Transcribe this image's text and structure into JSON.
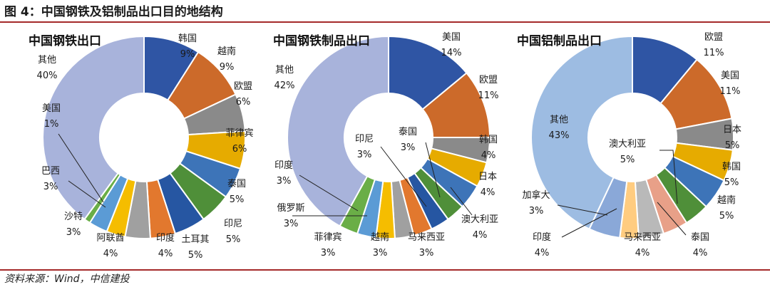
{
  "figure_title": "图 4：中国钢铁及铝制品出口目的地结构",
  "source": "资料来源：Wind，中信建投",
  "chart_data": [
    {
      "type": "pie",
      "title": "中国钢铁出口",
      "categories": [
        "韩国",
        "越南",
        "欧盟",
        "菲律宾",
        "泰国",
        "印尼",
        "土耳其",
        "印度",
        "阿联酋",
        "沙特",
        "巴西",
        "美国",
        "其他"
      ],
      "values": [
        9,
        9,
        6,
        6,
        5,
        5,
        5,
        4,
        4,
        3,
        3,
        1,
        40
      ],
      "value_labels": [
        "9%",
        "9%",
        "6%",
        "6%",
        "5%",
        "5%",
        "5%",
        "4%",
        "4%",
        "3%",
        "3%",
        "1%",
        "40%"
      ],
      "colors": [
        "#2f55a4",
        "#cc6a2a",
        "#8a8a8a",
        "#e6ab00",
        "#3d74b8",
        "#4f8f39",
        "#2656a2",
        "#e2782e",
        "#a0a0a0",
        "#f5bd00",
        "#5b9bd5",
        "#6aae47",
        "#a8b3db"
      ]
    },
    {
      "type": "pie",
      "title": "中国钢铁制品出口",
      "categories": [
        "美国",
        "欧盟",
        "韩国",
        "日本",
        "澳大利亚",
        "泰国",
        "印尼",
        "马来西亚",
        "越南",
        "菲律宾",
        "俄罗斯",
        "印度",
        "其他"
      ],
      "values": [
        14,
        11,
        4,
        4,
        4,
        3,
        3,
        3,
        3,
        3,
        3,
        3,
        42
      ],
      "value_labels": [
        "14%",
        "11%",
        "4%",
        "4%",
        "4%",
        "3%",
        "3%",
        "3%",
        "3%",
        "3%",
        "3%",
        "3%",
        "42%"
      ],
      "colors": [
        "#2f55a4",
        "#cc6a2a",
        "#8a8a8a",
        "#e6ab00",
        "#3d74b8",
        "#4f8f39",
        "#2656a2",
        "#e2782e",
        "#a0a0a0",
        "#f5bd00",
        "#5b9bd5",
        "#6aae47",
        "#a8b3db"
      ]
    },
    {
      "type": "pie",
      "title": "中国铝制品出口",
      "categories": [
        "欧盟",
        "美国",
        "日本",
        "韩国",
        "越南",
        "泰国",
        "马来西亚",
        "印度",
        "加拿大",
        "澳大利亚",
        "其他"
      ],
      "values": [
        11,
        11,
        5,
        5,
        5,
        4,
        4,
        4,
        3,
        5,
        43
      ],
      "value_labels": [
        "11%",
        "11%",
        "5%",
        "5%",
        "5%",
        "4%",
        "4%",
        "4%",
        "3%",
        "5%",
        "43%"
      ],
      "colors": [
        "#2f55a4",
        "#cc6a2a",
        "#8a8a8a",
        "#e6ab00",
        "#3d74b8",
        "#4f8f39",
        "#e8a088",
        "#b9b9b9",
        "#ffcc80",
        "#8aa8d8",
        "#9dbce2"
      ]
    }
  ]
}
